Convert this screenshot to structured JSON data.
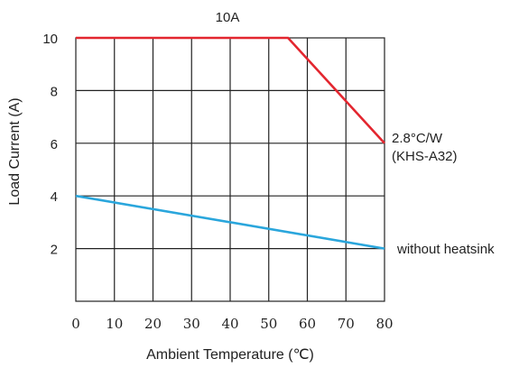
{
  "chart_data": {
    "type": "line",
    "title": "10A",
    "xlabel": "Ambient Temperature (℃)",
    "ylabel": "Load Current (A)",
    "xlim": [
      0,
      80
    ],
    "ylim": [
      0,
      10
    ],
    "x_ticks": [
      0,
      10,
      20,
      30,
      40,
      50,
      60,
      70,
      80
    ],
    "x_tick_labels": [
      "0",
      "10",
      "20",
      "30",
      "40",
      "50",
      "60",
      "70",
      "80"
    ],
    "y_ticks": [
      2,
      4,
      6,
      8,
      10
    ],
    "y_tick_labels": [
      "2",
      "4",
      "6",
      "8",
      "10"
    ],
    "grid": true,
    "series": [
      {
        "label_lines": [
          "2.8°C/W",
          "(KHS-A32)"
        ],
        "color": "#e3262f",
        "x": [
          0,
          55,
          80
        ],
        "y": [
          10,
          10,
          6
        ]
      },
      {
        "label_lines": [
          "without heatsink"
        ],
        "color": "#2aa6dc",
        "x": [
          0,
          80
        ],
        "y": [
          4,
          2
        ]
      }
    ]
  }
}
